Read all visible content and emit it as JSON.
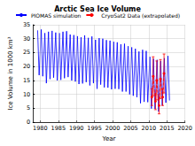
{
  "chart_data": {
    "type": "line",
    "title": "Arctic Sea Ice Volume",
    "xlabel": "Year",
    "ylabel": "Ice Volume in 1000 km³",
    "xlim": [
      1978,
      2020
    ],
    "xticks": [
      1980,
      1985,
      1990,
      1995,
      2000,
      2005,
      2010,
      2015,
      2020
    ],
    "ylim": [
      0,
      35
    ],
    "yticks": [
      0,
      5,
      10,
      15,
      20,
      25,
      30,
      35
    ],
    "grid": true,
    "legend": "top",
    "series": [
      {
        "name": "PIOMAS simulation",
        "color": "#0000ff",
        "marker": "none",
        "line_style": "solid",
        "x": [
          1979.29,
          1979.71,
          1980.29,
          1980.71,
          1981.29,
          1981.71,
          1982.29,
          1982.71,
          1983.29,
          1983.71,
          1984.29,
          1984.71,
          1985.29,
          1985.71,
          1986.29,
          1986.71,
          1987.29,
          1987.71,
          1988.29,
          1988.71,
          1989.29,
          1989.71,
          1990.29,
          1990.71,
          1991.29,
          1991.71,
          1992.29,
          1992.71,
          1993.29,
          1993.71,
          1994.29,
          1994.71,
          1995.29,
          1995.71,
          1996.29,
          1996.71,
          1997.29,
          1997.71,
          1998.29,
          1998.71,
          1999.29,
          1999.71,
          2000.29,
          2000.71,
          2001.29,
          2001.71,
          2002.29,
          2002.71,
          2003.29,
          2003.71,
          2004.29,
          2004.71,
          2005.29,
          2005.71,
          2006.29,
          2006.71,
          2007.29,
          2007.71,
          2008.29,
          2008.71,
          2009.29,
          2009.71,
          2010.29,
          2010.71,
          2011.29,
          2011.71,
          2012.29,
          2012.71,
          2013.29,
          2013.71,
          2014.29,
          2014.71,
          2015.29,
          2015.71
        ],
        "values": [
          33.0,
          16.9,
          33.3,
          16.5,
          32.0,
          14.0,
          32.5,
          15.5,
          32.8,
          16.0,
          32.2,
          15.0,
          32.0,
          15.2,
          32.5,
          15.8,
          32.7,
          16.2,
          31.5,
          15.0,
          31.3,
          14.6,
          30.9,
          13.7,
          30.5,
          13.9,
          31.2,
          14.4,
          30.3,
          13.2,
          30.8,
          14.0,
          29.6,
          12.0,
          30.2,
          13.5,
          30.0,
          12.5,
          29.5,
          12.4,
          29.3,
          11.8,
          28.9,
          12.0,
          28.7,
          11.9,
          28.0,
          11.0,
          28.2,
          11.0,
          27.3,
          10.0,
          26.9,
          9.5,
          26.4,
          9.0,
          25.4,
          6.8,
          26.0,
          7.3,
          25.6,
          7.2,
          23.5,
          4.9,
          22.8,
          4.8,
          22.4,
          3.8,
          22.0,
          6.0,
          23.0,
          7.0,
          23.8,
          7.8
        ]
      },
      {
        "name": "CryoSat2 Data (extrapolated)",
        "color": "#ff0000",
        "marker": "circle",
        "line_style": "dashed",
        "x": [
          2010.83,
          2011.21,
          2011.83,
          2012.21,
          2012.83,
          2013.21,
          2013.83,
          2014.21
        ],
        "values": [
          9.0,
          16.5,
          7.5,
          15.0,
          6.0,
          15.5,
          9.0,
          17.5
        ],
        "errors": [
          3,
          7,
          3,
          7,
          3,
          7,
          3,
          7
        ]
      }
    ]
  }
}
